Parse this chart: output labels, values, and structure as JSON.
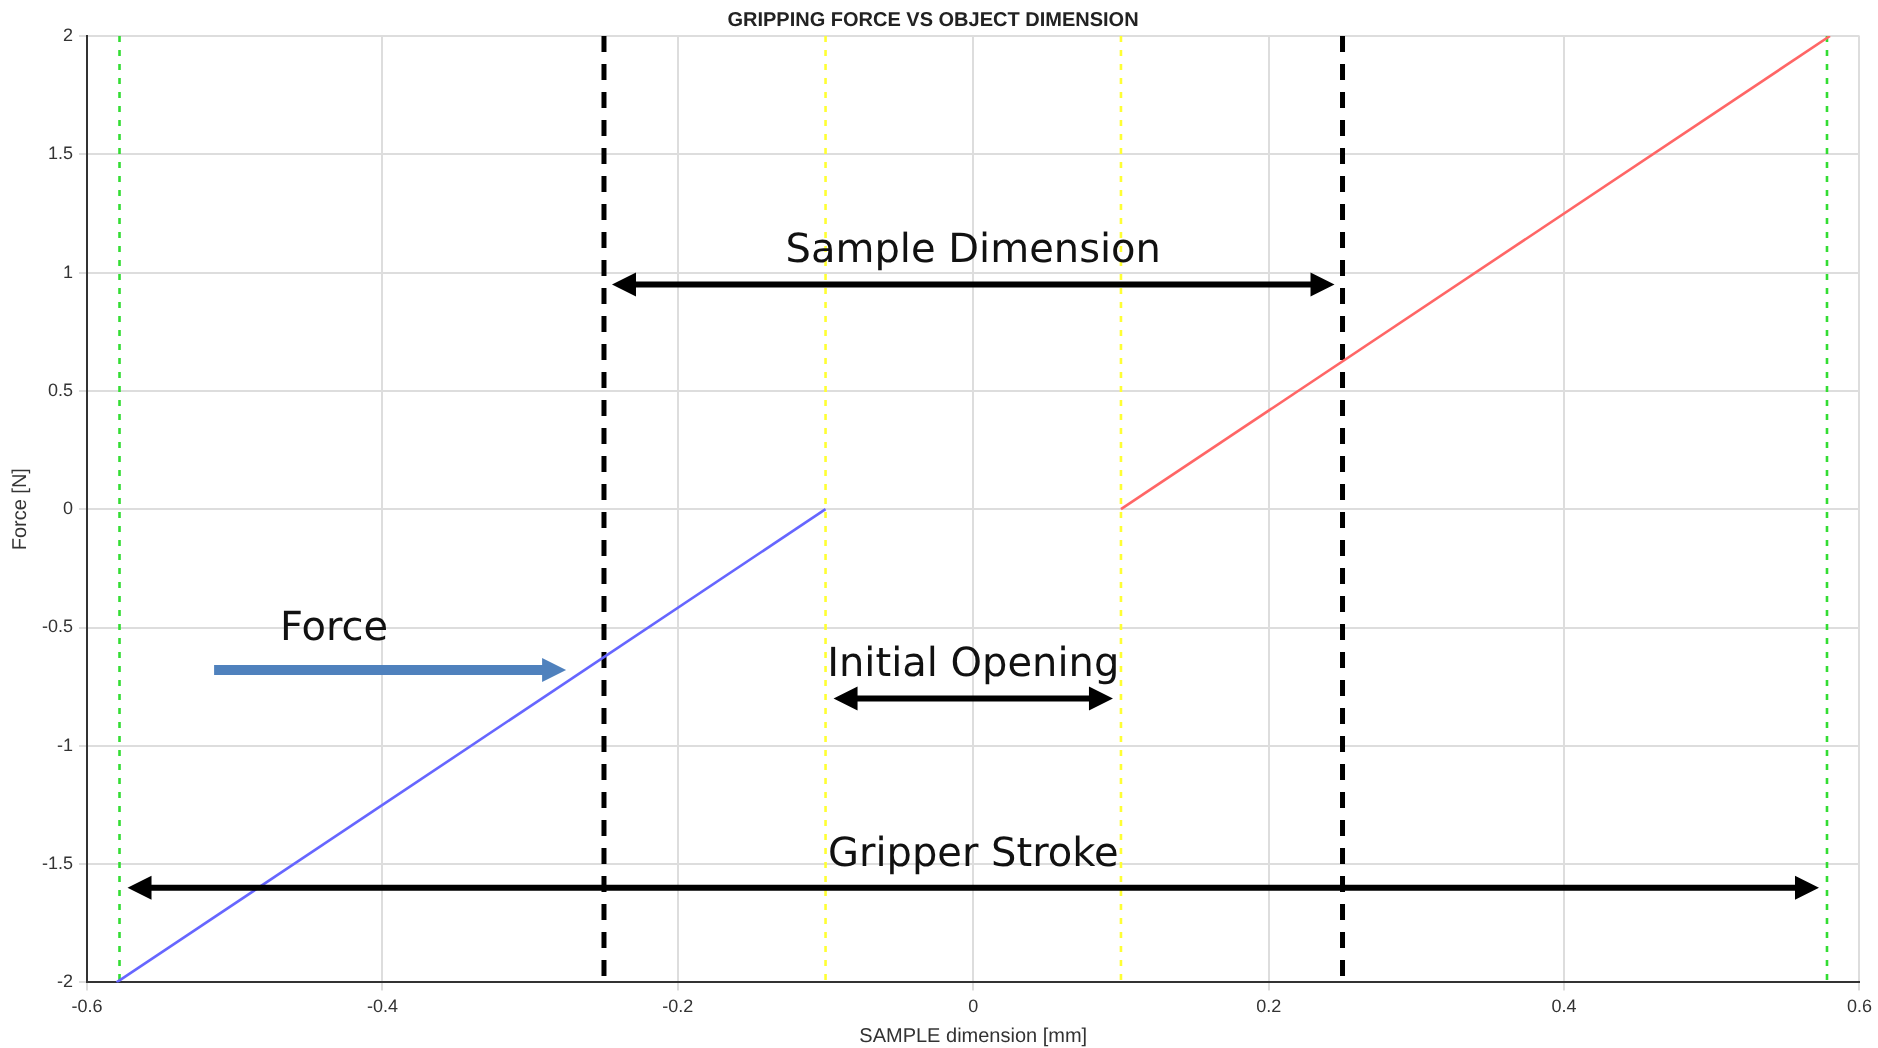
{
  "chart_data": {
    "type": "line",
    "title": "GRIPPING FORCE VS OBJECT DIMENSION",
    "xlabel": "SAMPLE dimension [mm]",
    "ylabel": "Force [N]",
    "xlim": [
      -0.6,
      0.6
    ],
    "xticks": [
      -0.6,
      -0.4,
      -0.2,
      0,
      0.2,
      0.4,
      0.6
    ],
    "ylim": [
      -2,
      2
    ],
    "yticks": [
      -2,
      -1.5,
      -1,
      -0.5,
      0,
      0.5,
      1,
      1.5,
      2
    ],
    "grid": true,
    "legend": false,
    "marker": "none",
    "line_style": "solid",
    "series": [
      {
        "color": "#6666ff",
        "x": [
          -0.58,
          -0.1
        ],
        "values": [
          -2,
          0
        ]
      },
      {
        "color": "#ff6666",
        "x": [
          0.1,
          0.58
        ],
        "values": [
          0,
          2
        ]
      }
    ],
    "ref_lines": [
      {
        "axis": "x",
        "value": -0.25,
        "color": "#000000",
        "line_style": "dashed"
      },
      {
        "axis": "x",
        "value": 0.25,
        "color": "#000000",
        "line_style": "dashed"
      },
      {
        "axis": "x",
        "value": -0.1,
        "color": "#ffff33",
        "line_style": "dotted"
      },
      {
        "axis": "x",
        "value": 0.1,
        "color": "#ffff33",
        "line_style": "dotted"
      },
      {
        "axis": "x",
        "value": -0.578,
        "color": "#33dd33",
        "line_style": "dotted"
      },
      {
        "axis": "x",
        "value": 0.578,
        "color": "#33dd33",
        "line_style": "dotted"
      }
    ],
    "annotations": [
      "Sample Dimension",
      "Initial Opening",
      "Gripper Stroke",
      "Force"
    ]
  }
}
